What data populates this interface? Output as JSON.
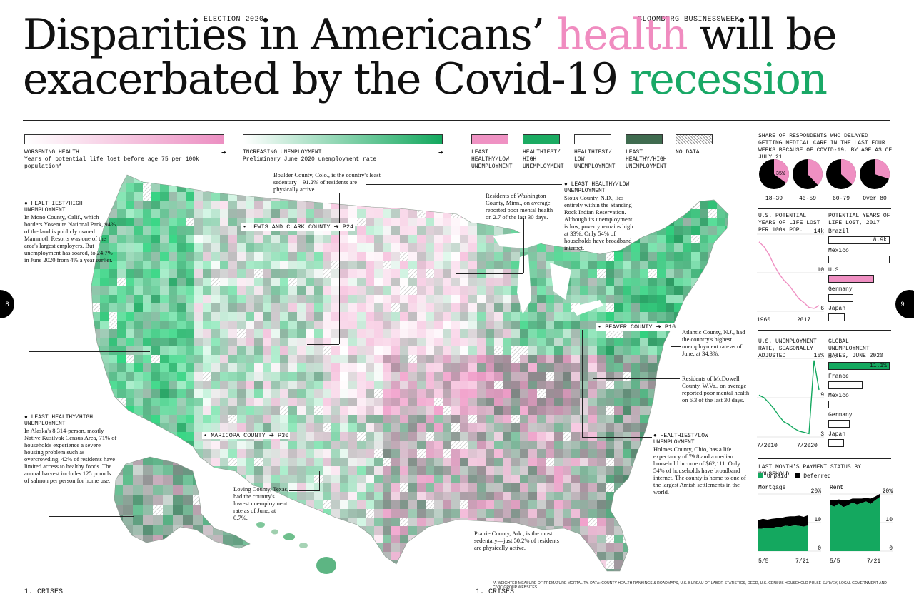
{
  "header": {
    "section": "ELECTION 2020",
    "publication": "BLOOMBERG BUSINESSWEEK",
    "title_part1": "Disparities in Americans’ ",
    "title_health": "health",
    "title_part2": " will be exacerbated by the Covid-19 ",
    "title_recession": "recession"
  },
  "legend": {
    "health": {
      "title": "WORSENING HEALTH",
      "subtitle": "Years of potential life lost before age 75 per 100k population*",
      "start_color": "#ffffff",
      "end_color": "#ec8fc2"
    },
    "unemployment": {
      "title": "INCREASING UNEMPLOYMENT",
      "subtitle": "Preliminary June 2020 unemployment rate",
      "start_color": "#ffffff",
      "end_color": "#13a85e"
    },
    "swatches": [
      {
        "label": "LEAST HEALTHY/LOW UNEMPLOYMENT",
        "color": "#ef92c3"
      },
      {
        "label": "HEALTHIEST/ HIGH UNEMPLOYMENT",
        "color": "#1bab62"
      },
      {
        "label": "HEALTHIEST/ LOW UNEMPLOYMENT",
        "color": "#ffffff"
      },
      {
        "label": "LEAST HEALTHY/HIGH UNEMPLOYMENT",
        "color": "#3f6b4f"
      },
      {
        "label": "NO DATA",
        "color": "pattern"
      }
    ]
  },
  "annotations": {
    "mono": {
      "head": "HEALTHIEST/HIGH UNEMPLOYMENT",
      "body": "In Mono County, Calif., which borders Yosemite National Park, 94% of the land is publicly owned. Mammoth Resorts was one of the area's largest employers. But unemployment has soared, to 24.7% in June 2020 from 4% a year earlier."
    },
    "boulder": {
      "body": "Boulder County, Colo., is the country's least sedentary—91.2% of residents are physically active."
    },
    "washington": {
      "body": "Residents of Washington County, Minn., on average reported poor mental health on 2.7 of the last 30 days."
    },
    "sioux": {
      "head": "LEAST HEALTHY/LOW UNEMPLOYMENT",
      "body": "Sioux County, N.D., lies entirely within the Standing Rock Indian Reservation. Although its unemployment is low, poverty remains high at 33%. Only 54% of households have broadband internet."
    },
    "atlantic": {
      "body": "Atlantic County, N.J., had the country's highest unemployment rate as of June, at 34.3%."
    },
    "mcdowell": {
      "body": "Residents of McDowell County, W.Va., on average reported poor mental health on 6.3 of the last 30 days."
    },
    "holmes": {
      "head": "HEALTHIEST/LOW UNEMPLOYMENT",
      "body": "Holmes County, Ohio, has a life expectancy of 79.8 and a median household income of $62,111. Only 54% of households have broadband internet. The county is home to one of the largest Amish settlements in the world."
    },
    "alaska": {
      "head": "LEAST HEALTHY/HIGH UNEMPLOYMENT",
      "body": "In Alaska's 8,314-person, mostly Native Kusilvak Census Area, 71% of households experience a severe housing problem such as overcrowding; 42% of residents have limited access to healthy foods. The annual harvest includes 125 pounds of salmon per person for home use."
    },
    "loving": {
      "body": "Loving County, Texas, had the country's lowest unemployment rate as of June, at 0.7%."
    },
    "prairie": {
      "body": "Prairie County, Ark., is the most sedentary—just 50.2% of residents are physically active."
    }
  },
  "map_tags": {
    "lewis": "LEWIS AND CLARK COUNTY ➔ P24",
    "beaver": "BEAVER COUNTY ➔ P16",
    "maricopa": "MARICOPA COUNTY ➔ P30"
  },
  "sidebar": {
    "delayed_title": "SHARE OF RESPONDENTS WHO DELAYED GETTING MEDICAL CARE IN THE LAST FOUR WEEKS BECAUSE OF COVID-19, BY AGE AS OF JULY 21",
    "yll_title": "U.S. POTENTIAL YEARS OF LIFE LOST PER 100K POP.",
    "yll_2017_title": "POTENTIAL YEARS OF LIFE LOST, 2017",
    "unemp_title": "U.S. UNEMPLOYMENT RATE, SEASONALLY ADJUSTED",
    "global_unemp_title": "GLOBAL UNEMPLOYMENT RATES, JUNE 2020",
    "payment_title": "LAST MONTH'S PAYMENT STATUS BY HOUSEHOLD",
    "legend_unpaid": "Unpaid",
    "legend_deferred": "Deferred",
    "colors": {
      "pink": "#ef8fc2",
      "green": "#14a85f",
      "black": "#000000"
    }
  },
  "chart_data": [
    {
      "type": "pie",
      "title": "SHARE OF RESPONDENTS WHO DELAYED GETTING MEDICAL CARE IN THE LAST FOUR WEEKS BECAUSE OF COVID-19, BY AGE AS OF JULY 21",
      "categories": [
        "18-39",
        "40-59",
        "60-79",
        "Over 80"
      ],
      "values": [
        35,
        38,
        37,
        30
      ],
      "labels": [
        "35%",
        "",
        "",
        ""
      ]
    },
    {
      "type": "line",
      "title": "U.S. POTENTIAL YEARS OF LIFE LOST PER 100K POP.",
      "x": [
        1960,
        1965,
        1970,
        1975,
        1980,
        1985,
        1990,
        1995,
        2000,
        2005,
        2010,
        2014,
        2017
      ],
      "series": [
        {
          "values": [
            13.2,
            12.7,
            11.9,
            10.8,
            9.9,
            9.2,
            8.7,
            8.0,
            7.3,
            6.9,
            6.4,
            6.3,
            6.6
          ]
        }
      ],
      "ylim": [
        6,
        14
      ],
      "yticks": [
        "14k",
        "10",
        "6"
      ],
      "xticks": [
        "1960",
        "2017"
      ]
    },
    {
      "type": "bar",
      "title": "POTENTIAL YEARS OF LIFE LOST, 2017",
      "categories": [
        "Brazil",
        "Mexico",
        "U.S.",
        "Germany",
        "Japan"
      ],
      "values": [
        8.9,
        8.9,
        6.6,
        3.6,
        2.4
      ],
      "value_labels": [
        "8.9k",
        "",
        "",
        "",
        ""
      ],
      "highlight": "U.S."
    },
    {
      "type": "line",
      "title": "U.S. UNEMPLOYMENT RATE, SEASONALLY ADJUSTED",
      "x": [
        "2010-07",
        "2011-07",
        "2012-07",
        "2013-07",
        "2014-07",
        "2015-07",
        "2016-07",
        "2017-07",
        "2018-07",
        "2019-07",
        "2020-02",
        "2020-04",
        "2020-07"
      ],
      "series": [
        {
          "values": [
            9.4,
            9.0,
            8.2,
            7.3,
            6.2,
            5.3,
            4.9,
            4.3,
            3.9,
            3.7,
            3.5,
            14.7,
            10.2
          ]
        }
      ],
      "ylim": [
        3,
        15
      ],
      "yticks": [
        "15%",
        "9",
        "3"
      ],
      "xticks": [
        "7/2010",
        "7/2020"
      ]
    },
    {
      "type": "bar",
      "title": "GLOBAL UNEMPLOYMENT RATES, JUNE 2020",
      "categories": [
        "U.S.",
        "France",
        "Mexico",
        "Germany",
        "Japan"
      ],
      "values": [
        11.1,
        6.2,
        4.0,
        3.9,
        2.8
      ],
      "value_labels": [
        "11.1%",
        "",
        "",
        "",
        ""
      ],
      "highlight": "U.S."
    },
    {
      "type": "area",
      "title": "Mortgage",
      "x": [
        "5/5",
        "5/12",
        "5/19",
        "5/26",
        "6/2",
        "6/9",
        "6/16",
        "6/23",
        "6/30",
        "7/7",
        "7/14",
        "7/21"
      ],
      "series": [
        {
          "name": "Unpaid",
          "values": [
            7.8,
            7.9,
            8.2,
            8.0,
            8.5,
            8.4,
            8.9,
            8.7,
            9.0,
            8.8,
            8.6,
            9.0
          ]
        },
        {
          "name": "Deferred",
          "values": [
            3.0,
            3.4,
            2.8,
            3.3,
            3.0,
            3.2,
            3.1,
            3.5,
            3.2,
            3.6,
            3.4,
            3.6
          ]
        }
      ],
      "ylim": [
        0,
        20
      ],
      "yticks": [
        "20%",
        "10",
        "0"
      ],
      "xticks": [
        "5/5",
        "7/21"
      ]
    },
    {
      "type": "area",
      "title": "Rent",
      "x": [
        "5/5",
        "5/12",
        "5/19",
        "5/26",
        "6/2",
        "6/9",
        "6/16",
        "6/23",
        "6/30",
        "7/7",
        "7/14",
        "7/21"
      ],
      "series": [
        {
          "name": "Unpaid",
          "values": [
            16.2,
            15.6,
            16.6,
            15.4,
            16.0,
            17.0,
            16.3,
            16.8,
            17.4,
            16.5,
            17.8,
            18.9
          ]
        },
        {
          "name": "Deferred",
          "values": [
            1.6,
            2.2,
            1.5,
            2.4,
            1.8,
            1.4,
            2.1,
            1.6,
            1.2,
            1.9,
            1.3,
            1.1
          ]
        }
      ],
      "ylim": [
        0,
        20
      ],
      "yticks": [
        "20%",
        "10",
        "0"
      ],
      "xticks": [
        "5/5",
        "7/21"
      ]
    }
  ],
  "footer": {
    "left_label": "1. CRISES",
    "right_label": "1. CRISES",
    "page_left": "8",
    "page_right": "9",
    "source": "*A WEIGHTED MEASURE OF PREMATURE MORTALITY. DATA: COUNTY HEALTH RANKINGS & ROADMAPS, U.S. BUREAU OF LABOR STATISTICS, OECD, U.S. CENSUS HOUSEHOLD PULSE SURVEY, LOCAL GOVERNMENT AND CIVIC GROUP WEBSITES"
  }
}
